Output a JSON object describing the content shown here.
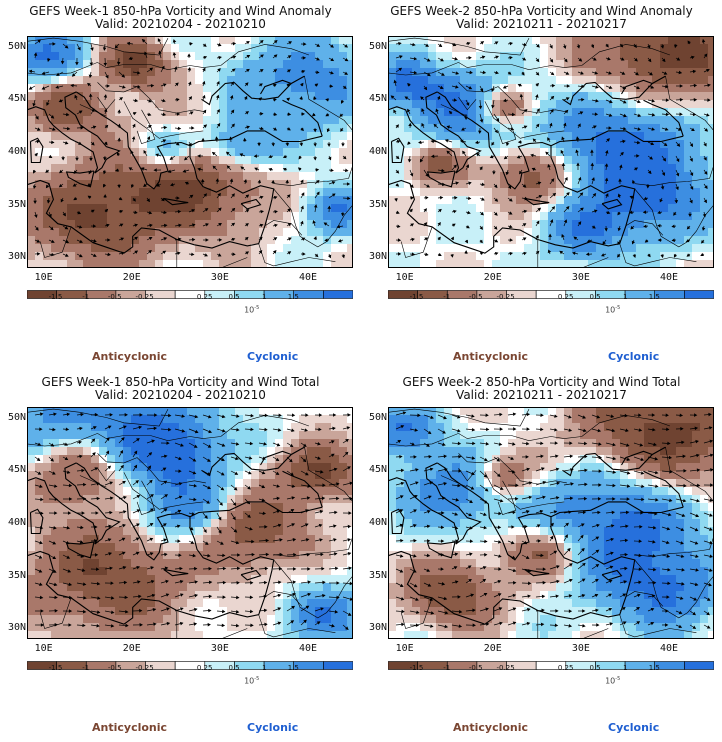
{
  "panels": [
    {
      "title": "GEFS Week-1 850-hPa Vorticity and Wind Anomaly",
      "valid": "Valid: 20210204 - 20210210"
    },
    {
      "title": "GEFS Week-2 850-hPa Vorticity and Wind Anomaly",
      "valid": "Valid: 20210211 - 20210217"
    },
    {
      "title": "GEFS Week-1 850-hPa Vorticity and Wind Total",
      "valid": "Valid: 20210204 - 20210210"
    },
    {
      "title": "GEFS Week-2 850-hPa Vorticity and Wind Total",
      "valid": "Valid: 20210211 - 20210217"
    }
  ],
  "axes": {
    "lat_labels": [
      "50N",
      "45N",
      "40N",
      "35N",
      "30N"
    ],
    "lon_labels": [
      "10E",
      "20E",
      "30E",
      "40E"
    ],
    "lat_range": [
      29,
      51
    ],
    "lon_range": [
      8,
      45
    ]
  },
  "colorbar": {
    "labels": [
      "-1.5",
      "-1",
      "-0.5",
      "-0.25",
      "0.25",
      "0.5",
      "1",
      "1.5"
    ],
    "unit": "10",
    "unit_exp": "-5",
    "colors": [
      "#6f4331",
      "#8a5a46",
      "#a9786a",
      "#c9a59a",
      "#ead6d0",
      "#ffffff",
      "#c8f0f8",
      "#8fd9f1",
      "#5fb1ea",
      "#3d8ee2",
      "#2670dc"
    ]
  },
  "legend": {
    "anticyclonic": "Anticyclonic",
    "cyclonic": "Cyclonic"
  }
}
